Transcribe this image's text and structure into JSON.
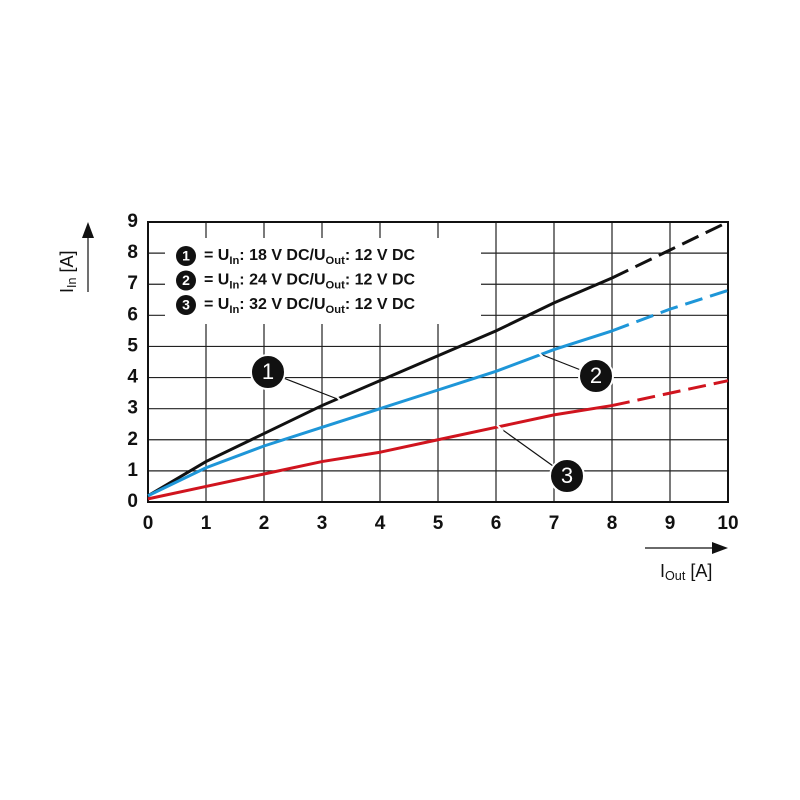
{
  "chart_data": {
    "type": "line",
    "x": [
      0,
      1,
      2,
      3,
      4,
      5,
      6,
      7,
      8,
      9,
      10
    ],
    "xlim": [
      0,
      10
    ],
    "xticks": [
      0,
      1,
      2,
      3,
      4,
      5,
      6,
      7,
      8,
      9,
      10
    ],
    "ylim": [
      0,
      9
    ],
    "yticks": [
      0,
      1,
      2,
      3,
      4,
      5,
      6,
      7,
      8,
      9
    ],
    "grid": true,
    "xlabel_parts": [
      "I",
      "Out",
      " [A]"
    ],
    "ylabel_parts": [
      "I",
      "In",
      " [A]"
    ],
    "dashed_after": 8,
    "series": [
      {
        "marker": "1",
        "name_parts": [
          "= U",
          "In",
          ": 18 V DC/U",
          "Out",
          ": 12 V DC"
        ],
        "color": "#111111",
        "values": [
          0.2,
          1.3,
          2.2,
          3.1,
          3.9,
          4.7,
          5.5,
          6.4,
          7.2,
          8.1,
          9.0
        ]
      },
      {
        "marker": "2",
        "name_parts": [
          "= U",
          "In",
          ": 24 V DC/U",
          "Out",
          ": 12 V DC"
        ],
        "color": "#1e96d8",
        "values": [
          0.2,
          1.1,
          1.8,
          2.4,
          3.0,
          3.6,
          4.2,
          4.9,
          5.5,
          6.2,
          6.8
        ]
      },
      {
        "marker": "3",
        "name_parts": [
          "= U",
          "In",
          ": 32 V DC/U",
          "Out",
          ": 12 V DC"
        ],
        "color": "#d0141e",
        "values": [
          0.1,
          0.5,
          0.9,
          1.3,
          1.6,
          2.0,
          2.4,
          2.8,
          3.1,
          3.5,
          3.9
        ]
      }
    ]
  }
}
